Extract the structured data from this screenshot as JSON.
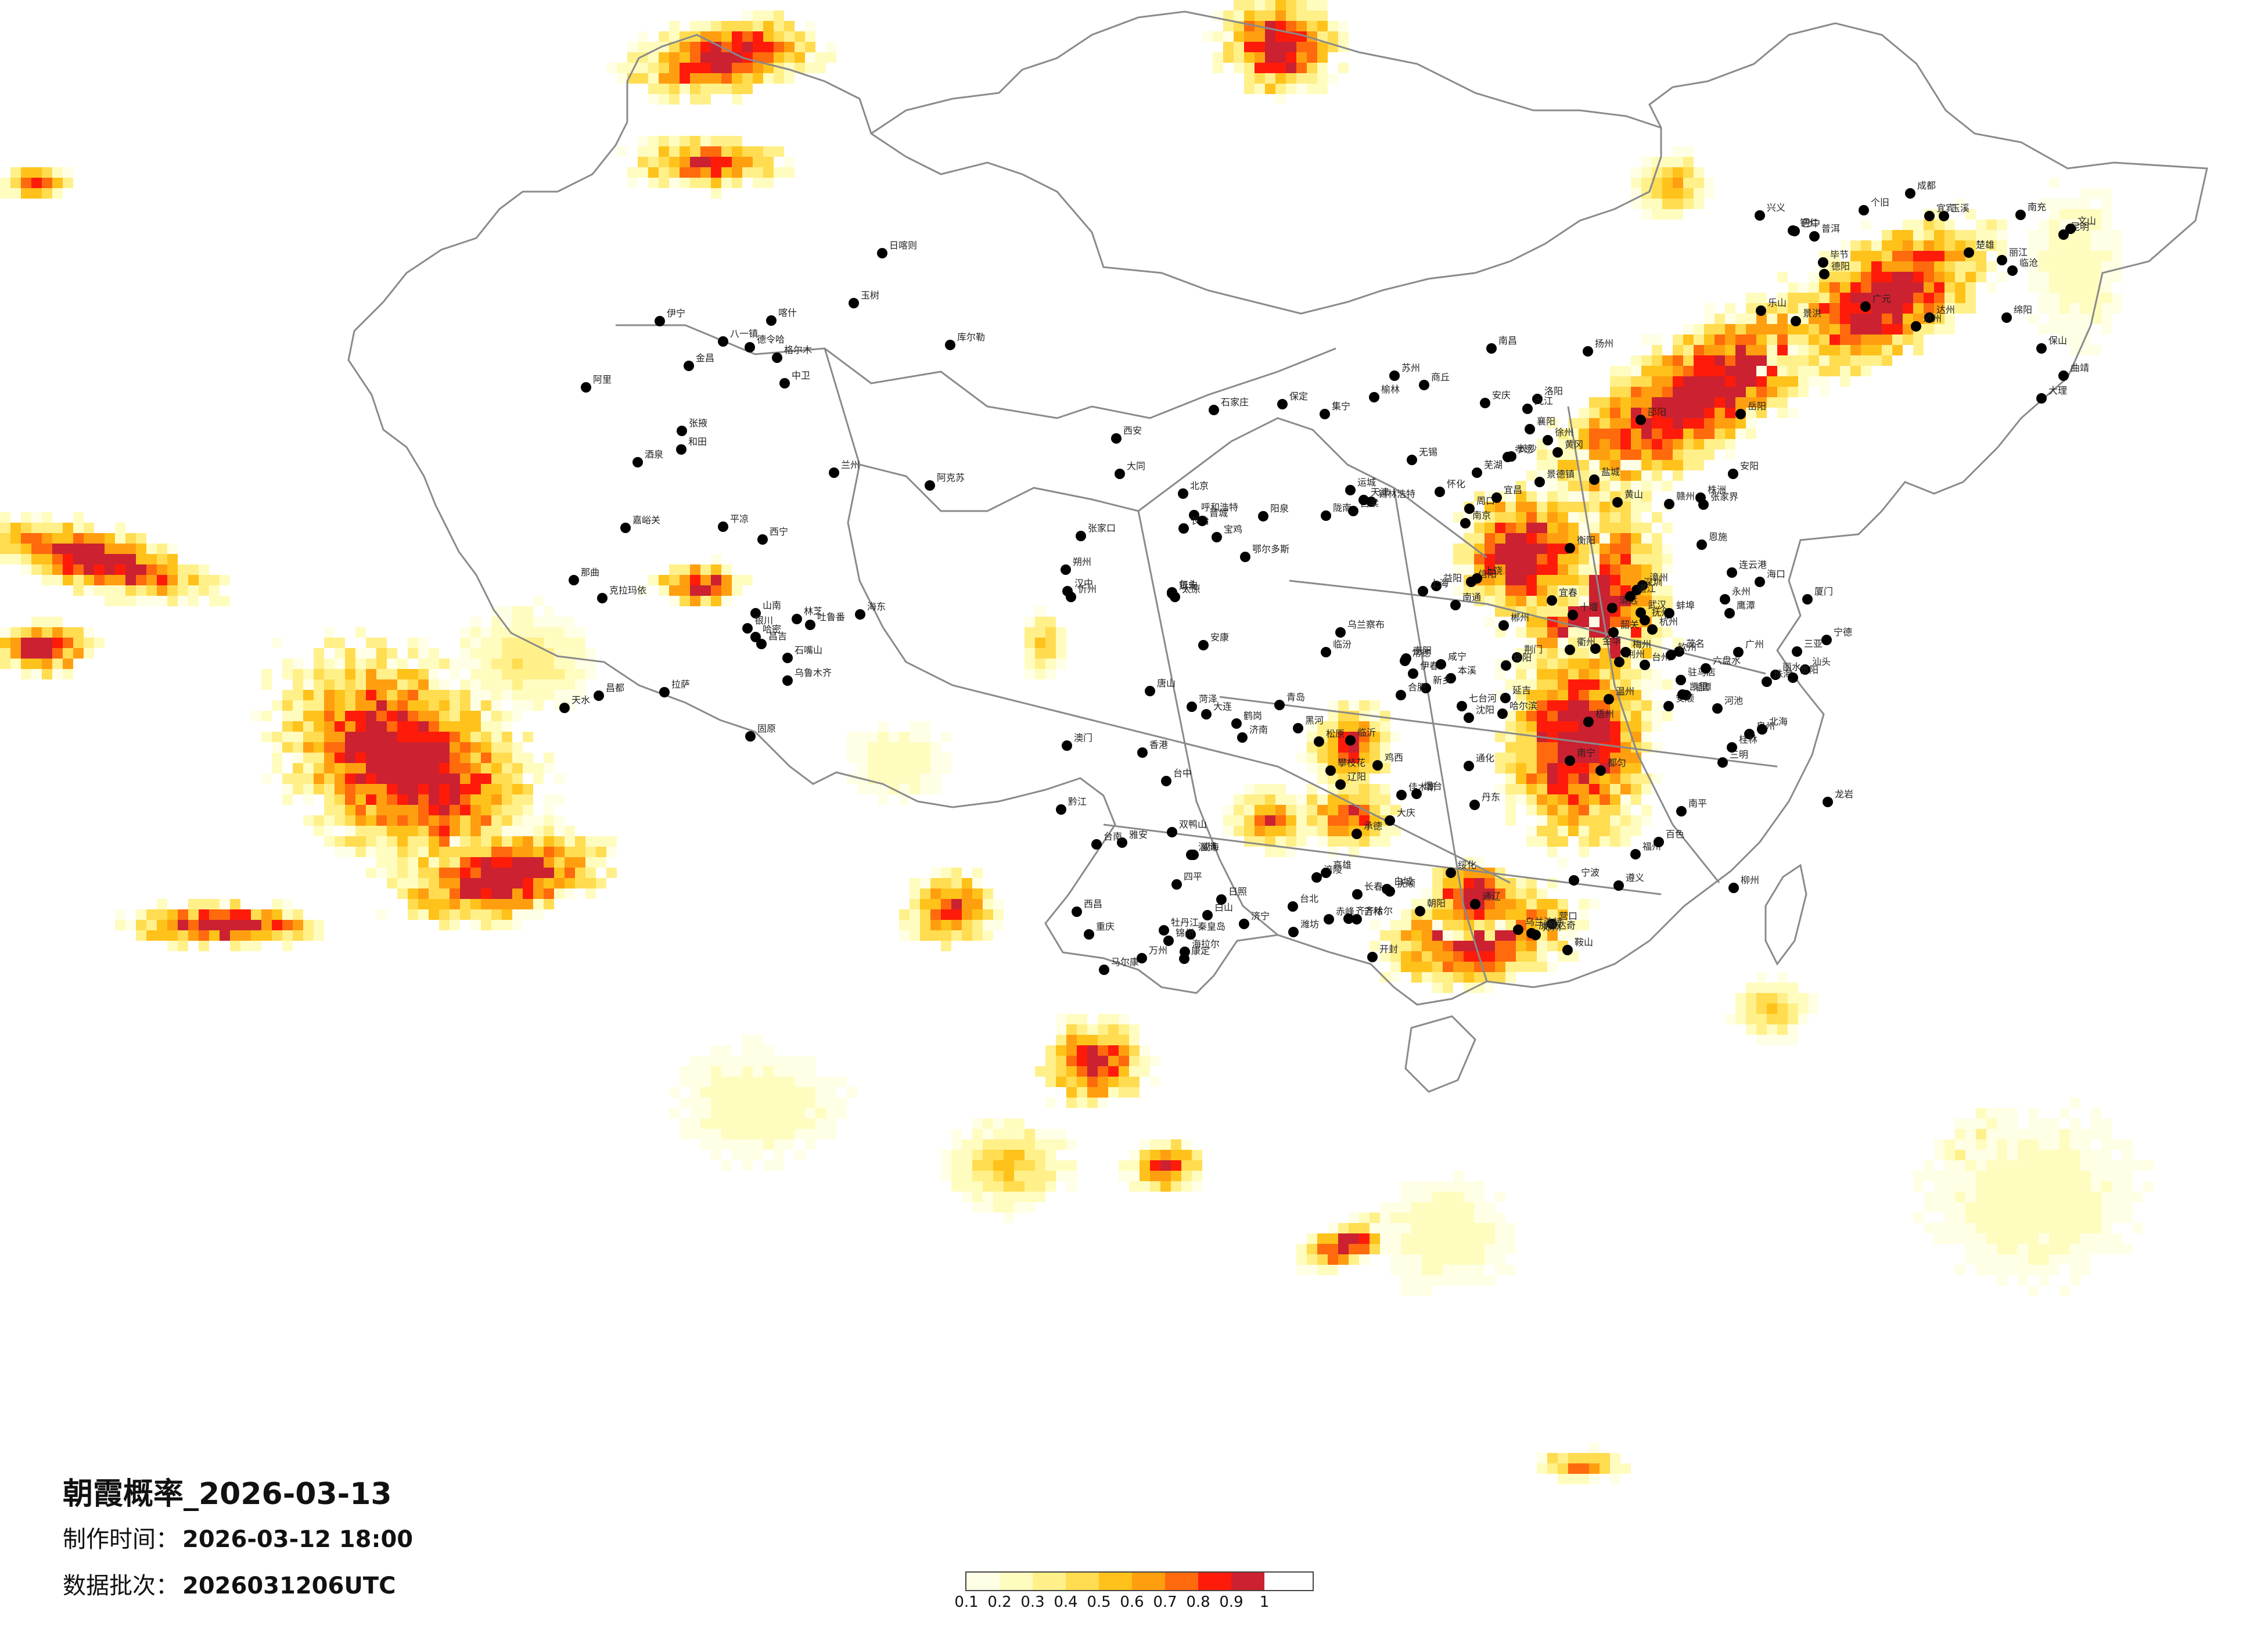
{
  "title": "朝霞概率_2026-03-13",
  "made_label": "制作时间：",
  "made_value": "2026-03-12 18:00",
  "batch_label": "数据批次：",
  "batch_value": "2026031206UTC",
  "legend": {
    "colors": [
      "#ffffe6",
      "#fffcc0",
      "#fff08a",
      "#ffdc50",
      "#ffc21a",
      "#ff9f0f",
      "#ff6a0d",
      "#ff1b0a",
      "#cc2130"
    ],
    "ticks": [
      "0.1",
      "0.2",
      "0.3",
      "0.4",
      "0.5",
      "0.6",
      "0.7",
      "0.8",
      "0.9",
      "1"
    ]
  },
  "cities": [
    "伊宁",
    "克拉玛依",
    "昌吉",
    "乌鲁木齐",
    "吐鲁番",
    "哈密",
    "库尔勒",
    "阿克苏",
    "喀什",
    "和田",
    "阿里",
    "拉萨",
    "日喀则",
    "山南",
    "林芝",
    "八一镇",
    "那曲",
    "昌都",
    "玉树",
    "格尔木",
    "德令哈",
    "西宁",
    "海东",
    "兰州",
    "张掖",
    "酒泉",
    "金昌",
    "嘉峪关",
    "银川",
    "石嘴山",
    "中卫",
    "固原",
    "平凉",
    "天水",
    "陇南",
    "汉中",
    "安康",
    "西安",
    "宝鸡",
    "延安",
    "榆林",
    "鄂尔多斯",
    "包头",
    "呼和浩特",
    "集宁",
    "乌兰察布",
    "锡林浩特",
    "张家口",
    "大同",
    "朔州",
    "忻州",
    "太原",
    "阳泉",
    "长治",
    "晋城",
    "运城",
    "临汾",
    "吕梁",
    "石家庄",
    "保定",
    "北京",
    "天津",
    "唐山",
    "秦皇岛",
    "承德",
    "赤峰",
    "朝阳",
    "锦州",
    "沈阳",
    "大连",
    "丹东",
    "抚顺",
    "本溪",
    "辽阳",
    "鞍山",
    "营口",
    "通辽",
    "长春",
    "吉林",
    "四平",
    "松原",
    "白城",
    "哈尔滨",
    "齐齐哈尔",
    "大庆",
    "绥化",
    "佳木斯",
    "鹤岗",
    "双鸭山",
    "七台河",
    "鸡西",
    "牡丹江",
    "伊春",
    "黑河",
    "加格达奇",
    "海拉尔",
    "乌兰浩特",
    "延吉",
    "白山",
    "通化",
    "济南",
    "青岛",
    "烟台",
    "威海",
    "潍坊",
    "淄博",
    "济宁",
    "临沂",
    "日照",
    "菏泽",
    "郑州",
    "开封",
    "洛阳",
    "新乡",
    "安阳",
    "商丘",
    "周口",
    "南阳",
    "信阳",
    "驻马店",
    "武汉",
    "宜昌",
    "荆州",
    "襄阳",
    "十堰",
    "恩施",
    "黄冈",
    "孝感",
    "咸宁",
    "荆门",
    "长沙",
    "岳阳",
    "常德",
    "张家界",
    "益阳",
    "株洲",
    "湘潭",
    "衡阳",
    "邵阳",
    "怀化",
    "永州",
    "郴州",
    "南昌",
    "九江",
    "景德镇",
    "上饶",
    "鹰潭",
    "抚州",
    "宜春",
    "赣州",
    "合肥",
    "芜湖",
    "安庆",
    "黄山",
    "蚌埠",
    "阜阳",
    "南京",
    "苏州",
    "无锡",
    "徐州",
    "连云港",
    "盐城",
    "南通",
    "扬州",
    "上海",
    "杭州",
    "宁波",
    "温州",
    "金华",
    "衢州",
    "丽水",
    "台州",
    "福州",
    "厦门",
    "泉州",
    "漳州",
    "龙岩",
    "三明",
    "南平",
    "宁德",
    "广州",
    "深圳",
    "珠海",
    "汕头",
    "梅州",
    "韶关",
    "清远",
    "湛江",
    "茂名",
    "海口",
    "三亚",
    "南宁",
    "桂林",
    "柳州",
    "梧州",
    "百色",
    "河池",
    "北海",
    "钦州",
    "贵阳",
    "遵义",
    "六盘水",
    "安顺",
    "凯里",
    "都匀",
    "铜仁",
    "毕节",
    "兴义",
    "昆明",
    "大理",
    "丽江",
    "保山",
    "楚雄",
    "曲靖",
    "玉溪",
    "普洱",
    "景洪",
    "个旧",
    "文山",
    "临沧",
    "成都",
    "绵阳",
    "德阳",
    "广元",
    "南充",
    "达州",
    "巴中",
    "宜宾",
    "泸州",
    "乐山",
    "雅安",
    "攀枝花",
    "西昌",
    "康定",
    "马尔康",
    "重庆",
    "万州",
    "涪陵",
    "黔江",
    "台北",
    "台中",
    "台南",
    "高雄",
    "香港",
    "澳门"
  ]
}
